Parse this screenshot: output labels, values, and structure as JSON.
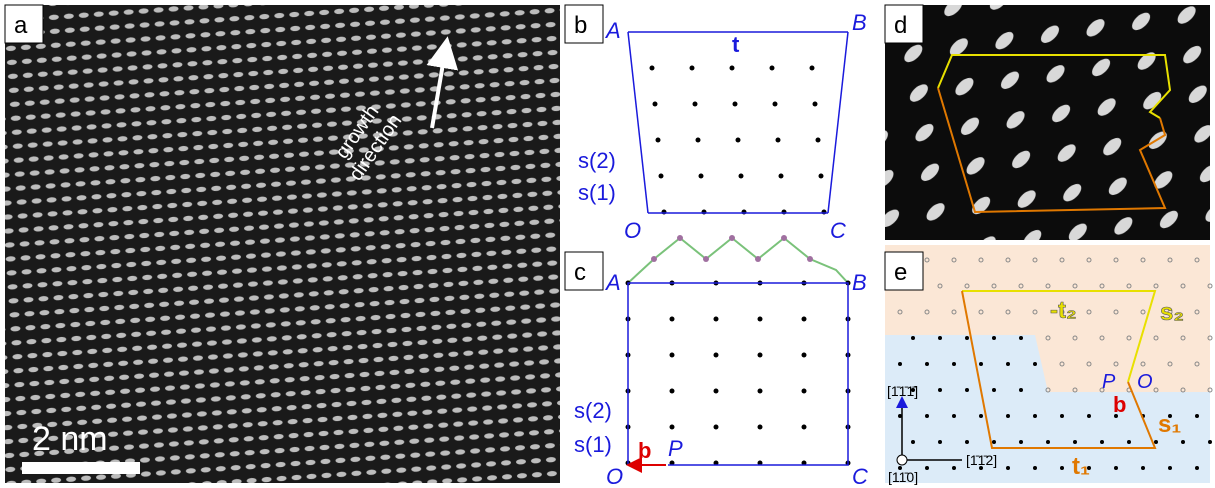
{
  "panel_a": {
    "label": "a",
    "growth": [
      "growth",
      "direction"
    ],
    "scale": "2 nm"
  },
  "panel_b": {
    "label": "b",
    "A": "A",
    "B": "B",
    "O": "O",
    "C": "C",
    "t": "t",
    "s2": "s(2)",
    "s1": "s(1)"
  },
  "panel_c": {
    "label": "c",
    "A": "A",
    "B": "B",
    "O": "O",
    "C": "C",
    "P": "P",
    "b": "b",
    "s2": "s(2)",
    "s1": "s(1)"
  },
  "panel_d": {
    "label": "d"
  },
  "panel_e": {
    "label": "e",
    "t2": "-t₂",
    "s2": "s₂",
    "P": "P",
    "O": "O",
    "b": "b",
    "s1": "s₁",
    "t1": "t₁",
    "dir_y": "[1̄1̄1̄]",
    "dir_x": "[1̄1̄2]",
    "dir_z": "[11̄0]"
  }
}
